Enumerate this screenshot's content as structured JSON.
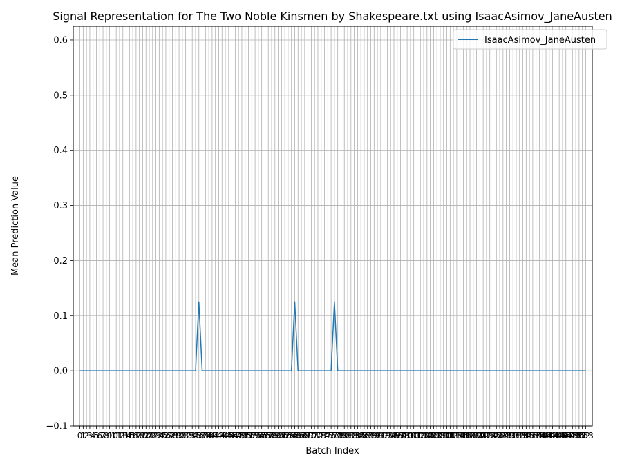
{
  "chart_data": {
    "type": "line",
    "title": "Signal Representation for The Two Noble Kinsmen by Shakespeare.txt using IsaacAsimov_JaneAusten",
    "xlabel": "Batch Index",
    "ylabel": "Mean Prediction Value",
    "xlim": [
      -2.0,
      155.0
    ],
    "ylim": [
      -0.1,
      0.625
    ],
    "x_tick_count": 154,
    "yticks": [
      -0.1,
      0.0,
      0.1,
      0.2,
      0.3,
      0.4,
      0.5,
      0.6
    ],
    "ytick_labels": [
      "−0.1",
      "0.0",
      "0.1",
      "0.2",
      "0.3",
      "0.4",
      "0.5",
      "0.6"
    ],
    "grid": true,
    "legend_position": "upper right",
    "series": [
      {
        "name": "IsaacAsimov_JaneAusten",
        "color": "#1f77b4",
        "spikes": [
          {
            "x": 36,
            "y": 0.125
          },
          {
            "x": 65,
            "y": 0.125
          },
          {
            "x": 77,
            "y": 0.125
          }
        ],
        "baseline": 0.0,
        "x_range": [
          0,
          153
        ]
      }
    ]
  }
}
